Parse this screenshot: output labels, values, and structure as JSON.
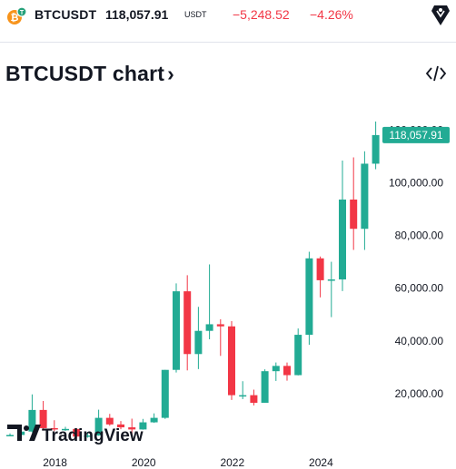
{
  "header": {
    "symbol": "BTCUSDT",
    "price": "118,057.91",
    "currency": "USDT",
    "change": "−5,248.52",
    "change_pct": "−4.26%"
  },
  "title": "BTCUSDT chart",
  "title_chevron": "›",
  "embed_icon": "</>",
  "colors": {
    "up": "#22ab94",
    "down": "#f23645",
    "text": "#131722"
  },
  "chart_data": {
    "type": "candlestick",
    "interval": "quarterly",
    "ylim": [
      0,
      128000
    ],
    "y_ticks": [
      {
        "value": 20000,
        "label": "20,000.00"
      },
      {
        "value": 40000,
        "label": "40,000.00"
      },
      {
        "value": 60000,
        "label": "60,000.00"
      },
      {
        "value": 80000,
        "label": "80,000.00"
      },
      {
        "value": 100000,
        "label": "100,000.00"
      },
      {
        "value": 120000,
        "label": "120,000.00"
      }
    ],
    "x_ticks": [
      {
        "index": 3,
        "label": "2018"
      },
      {
        "index": 11,
        "label": "2020"
      },
      {
        "index": 19,
        "label": "2022"
      },
      {
        "index": 27,
        "label": "2024"
      }
    ],
    "last_price_label": "118,057.91",
    "last_price": 118057.91,
    "candles": [
      {
        "o": 4200,
        "h": 4900,
        "l": 3800,
        "c": 4300
      },
      {
        "o": 4300,
        "h": 6000,
        "l": 3500,
        "c": 5600
      },
      {
        "o": 5600,
        "h": 19700,
        "l": 5300,
        "c": 13800
      },
      {
        "o": 13800,
        "h": 17200,
        "l": 6000,
        "c": 6900
      },
      {
        "o": 6900,
        "h": 9900,
        "l": 5800,
        "c": 6400
      },
      {
        "o": 6400,
        "h": 7400,
        "l": 5900,
        "c": 6600
      },
      {
        "o": 6600,
        "h": 6800,
        "l": 3200,
        "c": 3700
      },
      {
        "o": 3700,
        "h": 5500,
        "l": 3300,
        "c": 4100
      },
      {
        "o": 4100,
        "h": 13900,
        "l": 4000,
        "c": 10800
      },
      {
        "o": 10800,
        "h": 12300,
        "l": 7800,
        "c": 8300
      },
      {
        "o": 8300,
        "h": 9600,
        "l": 6500,
        "c": 7200
      },
      {
        "o": 7200,
        "h": 10500,
        "l": 3800,
        "c": 6400
      },
      {
        "o": 6400,
        "h": 10400,
        "l": 6300,
        "c": 9100
      },
      {
        "o": 9100,
        "h": 12500,
        "l": 8900,
        "c": 10800
      },
      {
        "o": 10800,
        "h": 29000,
        "l": 10400,
        "c": 29000
      },
      {
        "o": 29000,
        "h": 61800,
        "l": 28000,
        "c": 58800
      },
      {
        "o": 58800,
        "h": 64900,
        "l": 28800,
        "c": 35000
      },
      {
        "o": 35000,
        "h": 52900,
        "l": 29300,
        "c": 43800
      },
      {
        "o": 43800,
        "h": 69000,
        "l": 40600,
        "c": 46300
      },
      {
        "o": 46300,
        "h": 48200,
        "l": 34300,
        "c": 45500
      },
      {
        "o": 45500,
        "h": 47500,
        "l": 17600,
        "c": 19400
      },
      {
        "o": 19400,
        "h": 24700,
        "l": 17900,
        "c": 19400
      },
      {
        "o": 19400,
        "h": 21500,
        "l": 15500,
        "c": 16500
      },
      {
        "o": 16500,
        "h": 29200,
        "l": 16500,
        "c": 28500
      },
      {
        "o": 28500,
        "h": 31800,
        "l": 24800,
        "c": 30500
      },
      {
        "o": 30500,
        "h": 31800,
        "l": 24900,
        "c": 27000
      },
      {
        "o": 27000,
        "h": 44700,
        "l": 26900,
        "c": 42300
      },
      {
        "o": 42300,
        "h": 73800,
        "l": 38500,
        "c": 71300
      },
      {
        "o": 71300,
        "h": 72000,
        "l": 56500,
        "c": 63000
      },
      {
        "o": 63000,
        "h": 70000,
        "l": 49000,
        "c": 63300
      },
      {
        "o": 63300,
        "h": 108400,
        "l": 58900,
        "c": 93600
      },
      {
        "o": 93600,
        "h": 109600,
        "l": 74500,
        "c": 82500
      },
      {
        "o": 82500,
        "h": 111900,
        "l": 74500,
        "c": 107200
      },
      {
        "o": 107200,
        "h": 123200,
        "l": 105100,
        "c": 118057
      }
    ]
  },
  "watermark": {
    "logo": "TV",
    "text": "TradingView"
  }
}
